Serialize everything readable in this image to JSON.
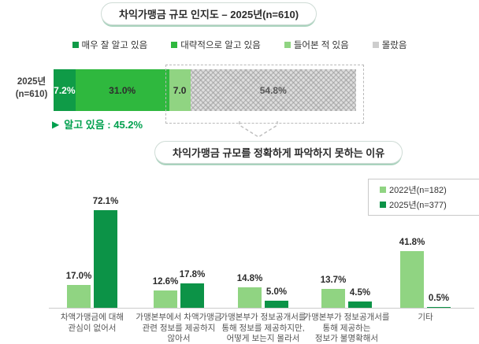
{
  "colors": {
    "dark_green": "#0f9b47",
    "bright_green": "#2fb83e",
    "light_green": "#90d482",
    "gray_square": "#cdcdcd",
    "series_2022": "#90d482",
    "series_2025": "#0c9347",
    "annotation_green": "#00a04e"
  },
  "chart_data": [
    {
      "type": "bar",
      "variant": "horizontal-stacked",
      "title": "차익가맹금 규모 인지도 – 2025년(n=610)",
      "row_label": [
        "2025년",
        "(n=610)"
      ],
      "categories": [
        "매우 잘 알고 있음",
        "대략적으로 알고 있음",
        "들어본 적 있음",
        "몰랐음"
      ],
      "values": [
        7.2,
        31.0,
        7.0,
        54.8
      ],
      "value_labels": [
        "7.2%",
        "31.0%",
        "7.0",
        "54.8%"
      ],
      "legend_colors": [
        "#0f9b47",
        "#2fb83e",
        "#90d482",
        "#cdcdcd"
      ],
      "segment_colors": [
        "#0f9b47",
        "#2fb83e",
        "#90d482",
        "#dedede"
      ],
      "hatch_index": 3,
      "label_colors": [
        "#ffffff",
        "#2d2d2d",
        "#2d2d2d",
        "#595959"
      ],
      "xlim": [
        0,
        100
      ],
      "annotation_marker": "▶",
      "annotation": "알고 있음 : 45.2%",
      "callout": "unaware-segments-highlighted-with-dashed-box"
    },
    {
      "type": "bar",
      "variant": "grouped-vertical",
      "title": "차익가맹금 규모를 정확하게 파악하지 못하는 이유",
      "categories": [
        "차액가맹금에 대해\n관심이 없어서",
        "가맹본부에서 차액가맹금\n관련 정보를 제공하지\n않아서",
        "가맹본부가 정보공개서를\n통해 정보를 제공하지만,\n어떻게 보는지 몰라서",
        "가맹본부가 정보공개서를\n통해 제공하는\n정보가 불명확해서",
        "기타"
      ],
      "series": [
        {
          "name": "2022년(n=182)",
          "color": "#90d482",
          "values": [
            17.0,
            12.6,
            14.8,
            13.7,
            41.8
          ]
        },
        {
          "name": "2025년(n=377)",
          "color": "#0c9347",
          "values": [
            72.1,
            17.8,
            5.0,
            4.5,
            0.5
          ]
        }
      ],
      "ylim": [
        0,
        80
      ],
      "grid": false,
      "legend_position": "top-right"
    }
  ]
}
